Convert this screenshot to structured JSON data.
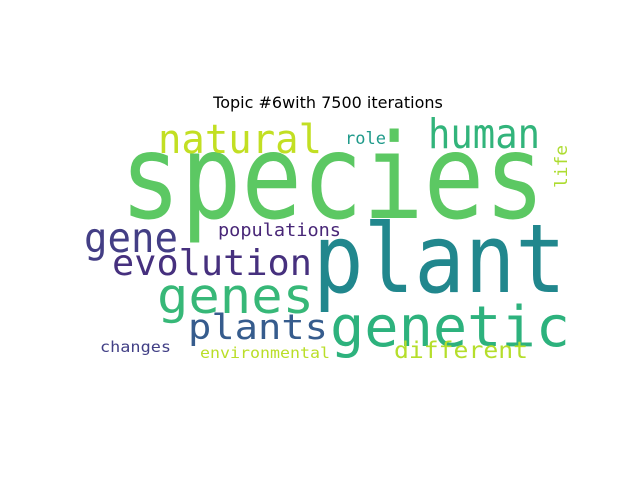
{
  "chart_data": {
    "type": "wordcloud",
    "title": "Topic #6with 7500 iterations",
    "words": [
      {
        "text": "species",
        "color": "#5cc863"
      },
      {
        "text": "plant",
        "color": "#21878d"
      },
      {
        "text": "genetic",
        "color": "#2db27d"
      },
      {
        "text": "natural",
        "color": "#c2df23"
      },
      {
        "text": "human",
        "color": "#32b47b"
      },
      {
        "text": "genes",
        "color": "#37b878"
      },
      {
        "text": "evolution",
        "color": "#46307e"
      },
      {
        "text": "gene",
        "color": "#433e85"
      },
      {
        "text": "plants",
        "color": "#365c8d"
      },
      {
        "text": "different",
        "color": "#b5de2b"
      },
      {
        "text": "populations",
        "color": "#482677"
      },
      {
        "text": "role",
        "color": "#1f9a8a"
      },
      {
        "text": "life",
        "color": "#addc30"
      },
      {
        "text": "environmental",
        "color": "#bade28"
      },
      {
        "text": "changes",
        "color": "#424086"
      }
    ]
  }
}
